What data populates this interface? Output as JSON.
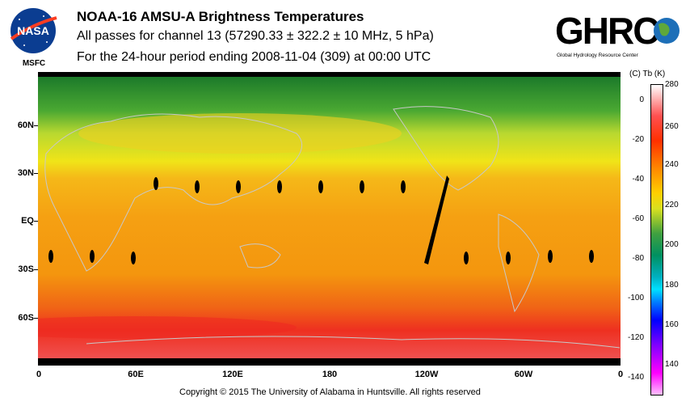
{
  "header": {
    "title": "NOAA-16 AMSU-A Brightness Temperatures",
    "line2": "All passes for channel 13 (57290.33 ± 322.2 ± 10 MHz, 5 hPa)",
    "line3": "For the 24-hour period ending 2008-11-04 (309) at 00:00 UTC"
  },
  "logos": {
    "nasa_text": "NASA",
    "msfc_text": "MSFC",
    "ghrc_text": "GHRC",
    "ghrc_subtitle": "Global Hydrology Resource Center"
  },
  "map": {
    "lat_labels": [
      "60N",
      "30N",
      "EQ",
      "30S",
      "60S"
    ],
    "lon_labels": [
      "0",
      "60E",
      "120E",
      "180",
      "120W",
      "60W",
      "0"
    ],
    "colors": {
      "cold_pole": "#1f7a2a",
      "mid": "#e8e020",
      "warm": "#f59a10",
      "hot": "#ee2020",
      "coast": "#c8c8c8",
      "gap": "#000000"
    }
  },
  "colorbar": {
    "unit_label": "(C)  Tb  (K)",
    "celsius_ticks": [
      "0",
      "-20",
      "-40",
      "-60",
      "-80",
      "-100",
      "-120",
      "-140"
    ],
    "kelvin_ticks": [
      "280",
      "260",
      "240",
      "220",
      "200",
      "180",
      "160",
      "140"
    ]
  },
  "footer": {
    "copyright": "Copyright © 2015 The University of Alabama in Huntsville.  All rights reserved"
  }
}
